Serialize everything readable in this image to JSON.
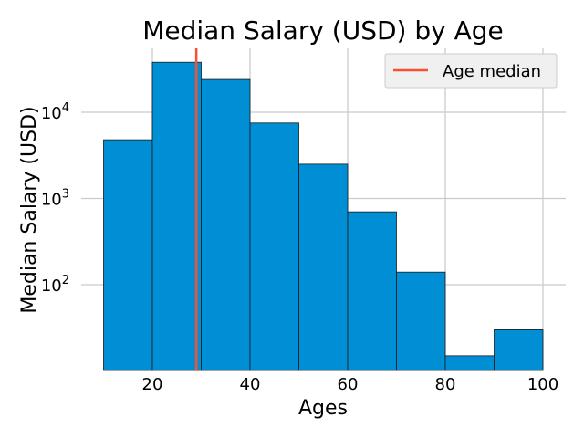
{
  "chart_data": {
    "type": "bar",
    "title": "Median Salary (USD) by Age",
    "xlabel": "Ages",
    "ylabel": "Median Salary (USD)",
    "y_scale": "log",
    "xlim": [
      10,
      100
    ],
    "ylim": [
      11,
      60000
    ],
    "bins": [
      {
        "x0": 10,
        "x1": 20,
        "value": 4800
      },
      {
        "x0": 20,
        "x1": 30,
        "value": 38000
      },
      {
        "x0": 30,
        "x1": 40,
        "value": 24000
      },
      {
        "x0": 40,
        "x1": 50,
        "value": 7500
      },
      {
        "x0": 50,
        "x1": 60,
        "value": 2500
      },
      {
        "x0": 60,
        "x1": 70,
        "value": 700
      },
      {
        "x0": 70,
        "x1": 80,
        "value": 140
      },
      {
        "x0": 80,
        "x1": 90,
        "value": 15
      },
      {
        "x0": 90,
        "x1": 100,
        "value": 30
      }
    ],
    "x_ticks": [
      {
        "value": 20,
        "label": "20"
      },
      {
        "value": 40,
        "label": "40"
      },
      {
        "value": 60,
        "label": "60"
      },
      {
        "value": 80,
        "label": "80"
      },
      {
        "value": 100,
        "label": "100"
      }
    ],
    "y_ticks": [
      {
        "value": 100,
        "base": "10",
        "exp": "2"
      },
      {
        "value": 1000,
        "base": "10",
        "exp": "3"
      },
      {
        "value": 10000,
        "base": "10",
        "exp": "4"
      }
    ],
    "reference_line": {
      "name": "Age median",
      "x": 29
    },
    "legend": {
      "entries": [
        "Age median"
      ],
      "placement": "top-right"
    },
    "grid": true,
    "colors": {
      "bar": "#008fd5",
      "bar_edge": "#1a1a1a",
      "median_line": "#fc4f30",
      "grid": "#cbcbcb"
    }
  }
}
